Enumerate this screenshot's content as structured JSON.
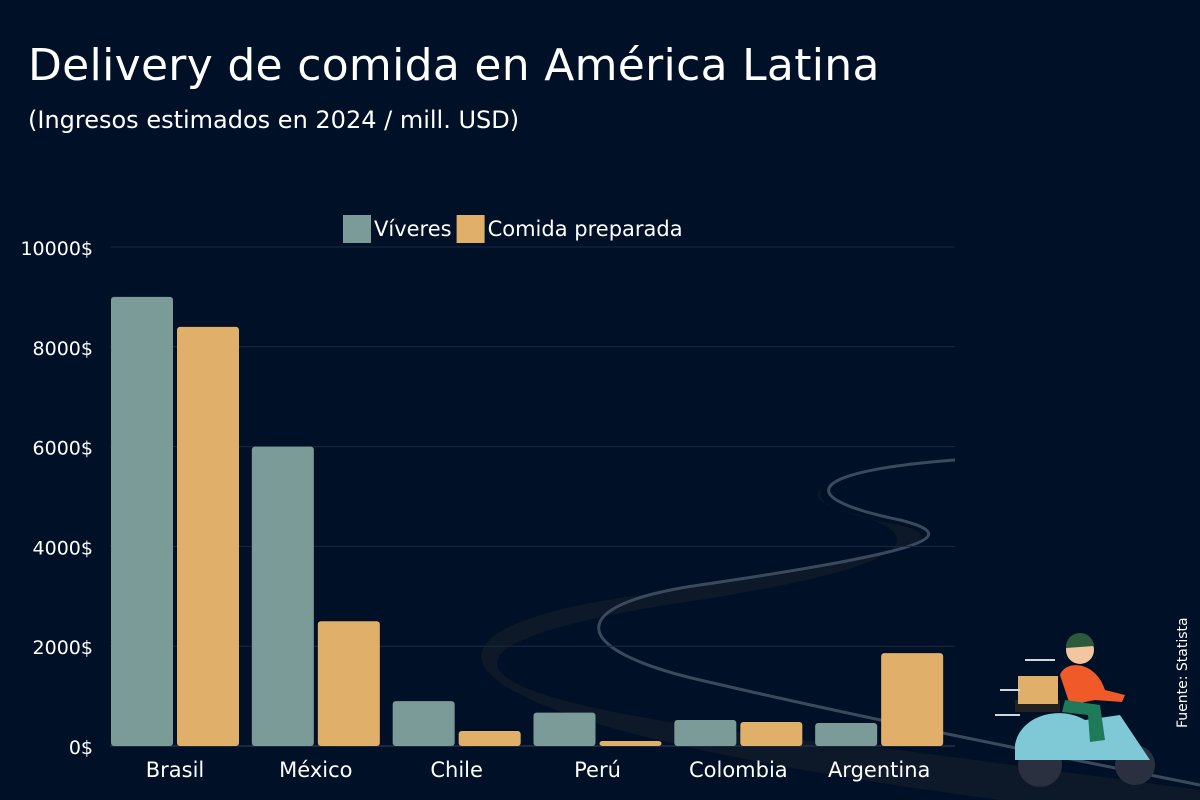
{
  "chart_data": {
    "type": "bar",
    "title": "Delivery de comida en América Latina",
    "subtitle": "(Ingresos estimados en 2024 / mill. USD)",
    "categories": [
      "Brasil",
      "México",
      "Chile",
      "Perú",
      "Colombia",
      "Argentina"
    ],
    "series": [
      {
        "name": "Víveres",
        "color": "#7a9b98",
        "values": [
          9000,
          6000,
          900,
          670,
          520,
          460
        ]
      },
      {
        "name": "Comida preparada",
        "color": "#e0b06a",
        "values": [
          8400,
          2500,
          300,
          100,
          480,
          1860
        ]
      }
    ],
    "ylim": [
      0,
      10000
    ],
    "yticks": [
      0,
      2000,
      4000,
      6000,
      8000,
      10000
    ],
    "ytick_suffix": "$",
    "grid": true,
    "legend": "top-center",
    "source": "Fuente: Statista",
    "background": "#001026"
  }
}
